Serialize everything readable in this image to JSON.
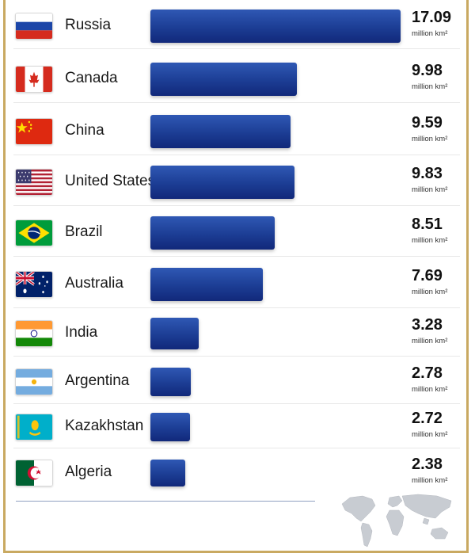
{
  "chart_data": {
    "type": "bar",
    "orientation": "horizontal",
    "categories": [
      "Russia",
      "Canada",
      "China",
      "United States",
      "Brazil",
      "Australia",
      "India",
      "Argentina",
      "Kazakhstan",
      "Algeria"
    ],
    "values": [
      17.09,
      9.98,
      9.59,
      9.83,
      8.51,
      7.69,
      3.28,
      2.78,
      2.72,
      2.38
    ],
    "value_labels": [
      "17.09",
      "9.98",
      "9.59",
      "9.83",
      "8.51",
      "7.69",
      "3.28",
      "2.78",
      "2.72",
      "2.38"
    ],
    "unit": "million km²",
    "title": "",
    "xlabel": "",
    "ylabel": "",
    "grid": false,
    "legend": "none",
    "bar_color": "#1c3d94"
  },
  "flags": [
    "russia-flag-icon",
    "canada-flag-icon",
    "china-flag-icon",
    "united-states-flag-icon",
    "brazil-flag-icon",
    "australia-flag-icon",
    "india-flag-icon",
    "argentina-flag-icon",
    "kazakhstan-flag-icon",
    "algeria-flag-icon"
  ],
  "colors": {
    "frame": "#c9a961",
    "bar": "#1c3d94",
    "map": "#c8ccd2"
  }
}
